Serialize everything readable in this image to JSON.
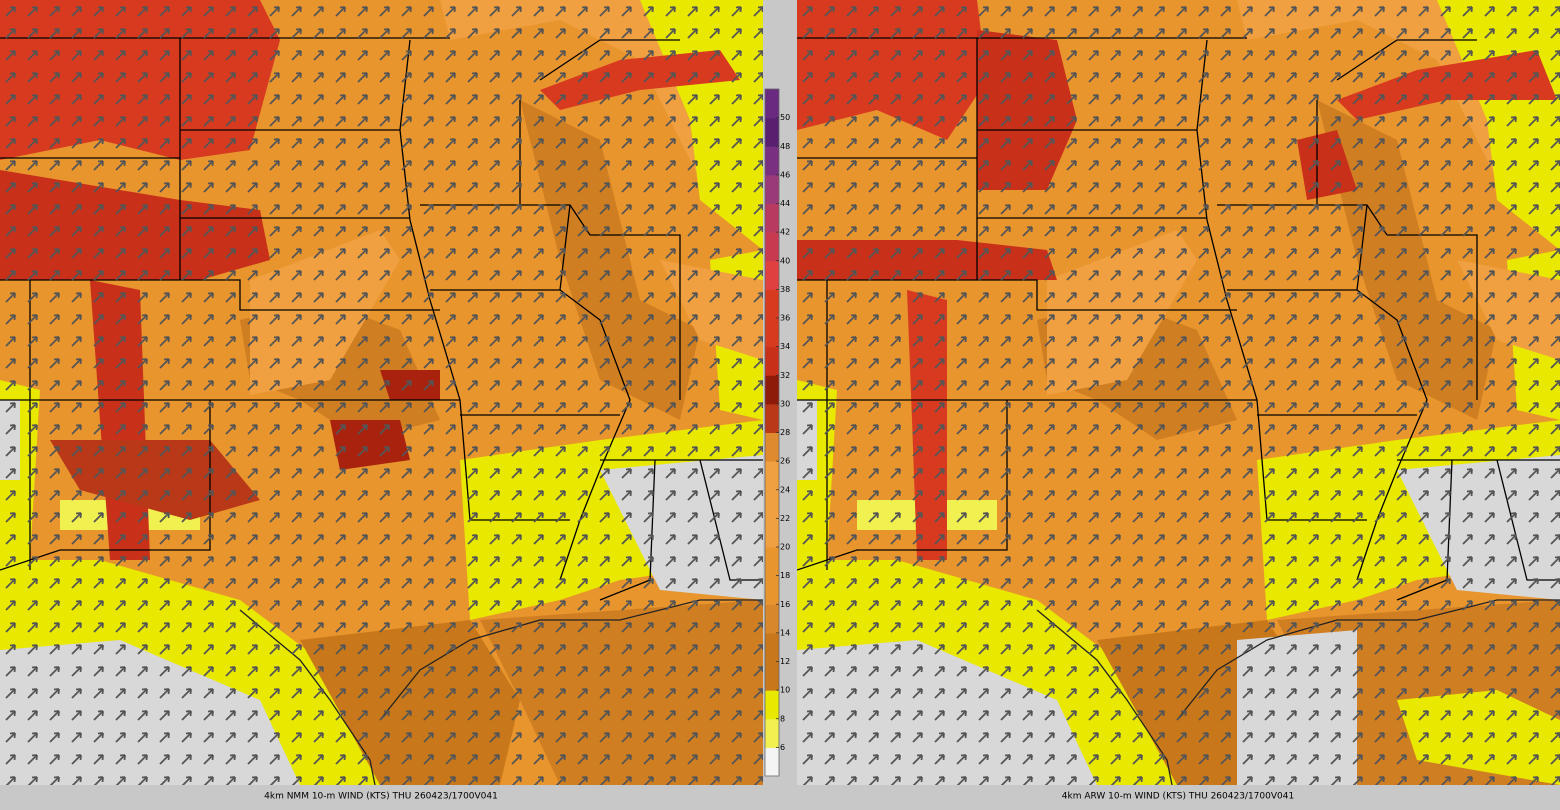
{
  "panels": [
    {
      "caption": "4km NMM 10-m WIND (KTS) THU 260423/1700V041"
    },
    {
      "caption": "4km ARW 10-m WIND (KTS) THU 260423/1700V041"
    }
  ],
  "colorbar": {
    "lim": [
      4,
      52
    ],
    "ticks": [
      6,
      8,
      10,
      12,
      14,
      16,
      18,
      20,
      22,
      24,
      26,
      28,
      30,
      32,
      34,
      36,
      38,
      40,
      42,
      44,
      46,
      48,
      50
    ],
    "colors": [
      "#f4f4f4",
      "#f0f050",
      "#e8e800",
      "#c8781a",
      "#c8781a",
      "#d8882a",
      "#e8952e",
      "#e8952e",
      "#f0a040",
      "#f0a040",
      "#f0a040",
      "#e08a30",
      "#b83818",
      "#8e1a0a",
      "#c8301a",
      "#d83a20",
      "#d83a20",
      "#e04040",
      "#c83a50",
      "#b83a60",
      "#9a3a78",
      "#7a3080",
      "#5a2070",
      "#6a2a80"
    ]
  }
}
